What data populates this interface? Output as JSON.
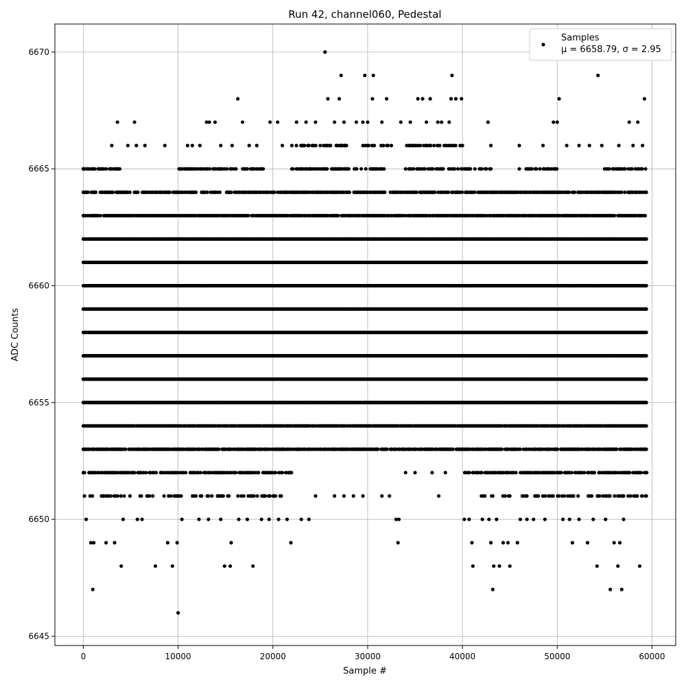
{
  "chart_data": {
    "type": "scatter",
    "title": "Run 42, channel060, Pedestal",
    "xlabel": "Sample #",
    "ylabel": "ADC Counts",
    "xlim": [
      -3000,
      62500
    ],
    "ylim": [
      6644.6,
      6671.2
    ],
    "x_ticks": [
      0,
      10000,
      20000,
      30000,
      40000,
      50000,
      60000
    ],
    "y_ticks": [
      6645,
      6650,
      6655,
      6660,
      6665,
      6670
    ],
    "grid": true,
    "legend_position": "top-right",
    "marker_color": "#000000",
    "series": [
      {
        "name": "Samples",
        "stats_label": "μ = 6658.79, σ = 2.95",
        "dense_levels": [
          {
            "y": 6665,
            "segments": [
              [
                0,
                4000
              ],
              [
                9500,
                19000
              ],
              [
                22000,
                32000
              ],
              [
                34000,
                43000
              ],
              [
                46000,
                50000
              ],
              [
                55000,
                59500
              ]
            ],
            "density": 0.55
          },
          {
            "y": 6664,
            "segments": [
              [
                0,
                59500
              ]
            ],
            "density": 0.75
          },
          {
            "y": 6663,
            "segments": [
              [
                0,
                59500
              ]
            ],
            "density": 0.9
          },
          {
            "y": 6662,
            "segments": [
              [
                0,
                59500
              ]
            ],
            "density": 1.0
          },
          {
            "y": 6661,
            "segments": [
              [
                0,
                59500
              ]
            ],
            "density": 1.0
          },
          {
            "y": 6660,
            "segments": [
              [
                0,
                59500
              ]
            ],
            "density": 1.0
          },
          {
            "y": 6659,
            "segments": [
              [
                0,
                59500
              ]
            ],
            "density": 1.0
          },
          {
            "y": 6658,
            "segments": [
              [
                0,
                59500
              ]
            ],
            "density": 1.0
          },
          {
            "y": 6657,
            "segments": [
              [
                0,
                59500
              ]
            ],
            "density": 1.0
          },
          {
            "y": 6656,
            "segments": [
              [
                0,
                59500
              ]
            ],
            "density": 1.0
          },
          {
            "y": 6655,
            "segments": [
              [
                0,
                59500
              ]
            ],
            "density": 1.0
          },
          {
            "y": 6654,
            "segments": [
              [
                0,
                59500
              ]
            ],
            "density": 0.95
          },
          {
            "y": 6653,
            "segments": [
              [
                0,
                59500
              ]
            ],
            "density": 0.8
          },
          {
            "y": 6652,
            "segments": [
              [
                0,
                22000
              ],
              [
                40000,
                59500
              ]
            ],
            "density": 0.7
          },
          {
            "y": 6651,
            "segments": [
              [
                0,
                21000
              ],
              [
                42000,
                59500
              ]
            ],
            "density": 0.4
          },
          {
            "y": 6666,
            "segments": [
              [
                22000,
                28000
              ],
              [
                29500,
                32500
              ],
              [
                34000,
                40000
              ]
            ],
            "density": 0.4
          }
        ],
        "sparse_points": [
          [
            0,
            6665
          ],
          [
            3000,
            6666
          ],
          [
            3600,
            6667
          ],
          [
            4700,
            6666
          ],
          [
            5400,
            6667
          ],
          [
            5600,
            6666
          ],
          [
            6500,
            6666
          ],
          [
            8600,
            6666
          ],
          [
            11000,
            6666
          ],
          [
            11500,
            6666
          ],
          [
            12300,
            6666
          ],
          [
            13000,
            6667
          ],
          [
            13300,
            6667
          ],
          [
            13900,
            6667
          ],
          [
            14500,
            6666
          ],
          [
            15700,
            6666
          ],
          [
            16300,
            6668
          ],
          [
            16800,
            6667
          ],
          [
            17500,
            6666
          ],
          [
            18300,
            6666
          ],
          [
            19700,
            6667
          ],
          [
            20500,
            6667
          ],
          [
            21000,
            6666
          ],
          [
            22500,
            6667
          ],
          [
            23500,
            6667
          ],
          [
            24500,
            6667
          ],
          [
            25500,
            6670
          ],
          [
            25800,
            6668
          ],
          [
            26500,
            6667
          ],
          [
            27000,
            6668
          ],
          [
            27200,
            6669
          ],
          [
            27500,
            6667
          ],
          [
            28800,
            6667
          ],
          [
            29500,
            6667
          ],
          [
            29700,
            6669
          ],
          [
            30000,
            6667
          ],
          [
            30500,
            6668
          ],
          [
            30600,
            6669
          ],
          [
            31500,
            6667
          ],
          [
            32000,
            6668
          ],
          [
            33500,
            6667
          ],
          [
            34500,
            6667
          ],
          [
            35300,
            6668
          ],
          [
            35800,
            6668
          ],
          [
            36200,
            6667
          ],
          [
            36600,
            6668
          ],
          [
            37400,
            6667
          ],
          [
            37800,
            6667
          ],
          [
            38600,
            6667
          ],
          [
            38800,
            6668
          ],
          [
            38900,
            6669
          ],
          [
            39300,
            6668
          ],
          [
            39900,
            6668
          ],
          [
            42700,
            6667
          ],
          [
            43000,
            6666
          ],
          [
            46000,
            6666
          ],
          [
            48500,
            6666
          ],
          [
            49600,
            6667
          ],
          [
            50000,
            6667
          ],
          [
            50200,
            6668
          ],
          [
            51000,
            6666
          ],
          [
            52300,
            6666
          ],
          [
            53400,
            6666
          ],
          [
            54300,
            6669
          ],
          [
            54700,
            6666
          ],
          [
            56500,
            6666
          ],
          [
            57600,
            6667
          ],
          [
            58000,
            6666
          ],
          [
            58500,
            6667
          ],
          [
            59200,
            6668
          ],
          [
            59000,
            6666
          ],
          [
            300,
            6650
          ],
          [
            800,
            6649
          ],
          [
            1000,
            6647
          ],
          [
            1100,
            6649
          ],
          [
            2400,
            6649
          ],
          [
            3300,
            6649
          ],
          [
            4000,
            6648
          ],
          [
            4200,
            6650
          ],
          [
            5700,
            6650
          ],
          [
            6200,
            6650
          ],
          [
            7600,
            6648
          ],
          [
            8900,
            6649
          ],
          [
            9400,
            6648
          ],
          [
            9900,
            6649
          ],
          [
            10000,
            6646
          ],
          [
            10400,
            6650
          ],
          [
            12200,
            6650
          ],
          [
            13200,
            6650
          ],
          [
            14500,
            6650
          ],
          [
            14900,
            6648
          ],
          [
            15500,
            6648
          ],
          [
            15600,
            6649
          ],
          [
            16400,
            6650
          ],
          [
            17300,
            6650
          ],
          [
            17900,
            6648
          ],
          [
            18800,
            6650
          ],
          [
            19600,
            6650
          ],
          [
            20600,
            6650
          ],
          [
            21500,
            6650
          ],
          [
            21900,
            6649
          ],
          [
            23000,
            6650
          ],
          [
            23800,
            6650
          ],
          [
            24500,
            6651
          ],
          [
            26500,
            6651
          ],
          [
            27500,
            6651
          ],
          [
            28500,
            6651
          ],
          [
            29500,
            6651
          ],
          [
            31500,
            6651
          ],
          [
            32300,
            6651
          ],
          [
            33000,
            6650
          ],
          [
            33200,
            6649
          ],
          [
            33300,
            6650
          ],
          [
            30500,
            6653
          ],
          [
            31000,
            6653
          ],
          [
            32000,
            6653
          ],
          [
            34000,
            6652
          ],
          [
            35000,
            6652
          ],
          [
            36800,
            6652
          ],
          [
            37500,
            6651
          ],
          [
            38200,
            6652
          ],
          [
            40200,
            6650
          ],
          [
            40700,
            6650
          ],
          [
            41000,
            6649
          ],
          [
            41100,
            6648
          ],
          [
            42100,
            6650
          ],
          [
            42800,
            6650
          ],
          [
            43000,
            6649
          ],
          [
            43200,
            6647
          ],
          [
            43300,
            6648
          ],
          [
            43600,
            6650
          ],
          [
            43900,
            6648
          ],
          [
            44300,
            6649
          ],
          [
            44800,
            6649
          ],
          [
            45000,
            6648
          ],
          [
            45800,
            6649
          ],
          [
            46100,
            6650
          ],
          [
            46800,
            6650
          ],
          [
            47500,
            6650
          ],
          [
            48700,
            6650
          ],
          [
            50600,
            6650
          ],
          [
            51300,
            6650
          ],
          [
            51600,
            6649
          ],
          [
            52300,
            6650
          ],
          [
            53200,
            6649
          ],
          [
            53800,
            6650
          ],
          [
            54200,
            6648
          ],
          [
            55100,
            6650
          ],
          [
            55600,
            6647
          ],
          [
            56000,
            6649
          ],
          [
            56400,
            6648
          ],
          [
            56600,
            6649
          ],
          [
            56800,
            6647
          ],
          [
            57000,
            6650
          ],
          [
            58700,
            6648
          ]
        ]
      }
    ]
  }
}
